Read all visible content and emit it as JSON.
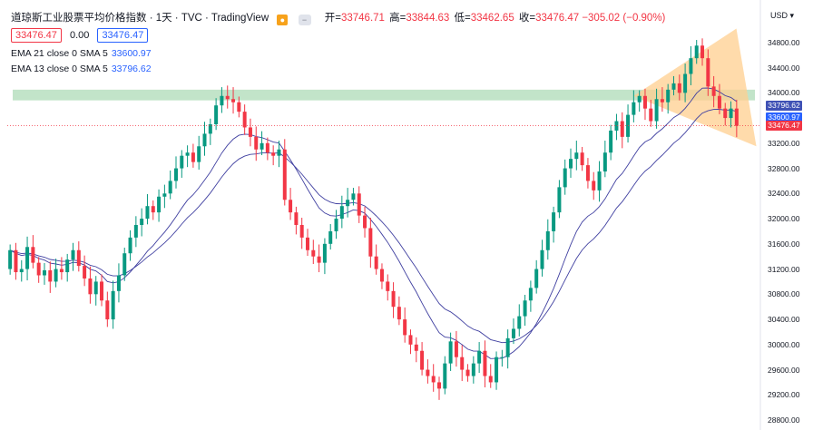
{
  "header": {
    "symbol_title": "道琼斯工业股票平均价格指数 · 1天 · TVC · TradingView",
    "open_label": "开=",
    "open_value": "33746.71",
    "high_label": "高=",
    "high_value": "33844.63",
    "low_label": "低=",
    "low_value": "33462.65",
    "close_label": "收=",
    "close_value": "33476.47",
    "change_value": "−305.02 (−0.90%)",
    "price_box_red": "33476.47",
    "zero_value": "0.00",
    "price_box_blue": "33476.47"
  },
  "indicators": [
    {
      "label": "EMA 21 close 0 SMA 5",
      "value": "33600.97"
    },
    {
      "label": "EMA 13 close 0 SMA 5",
      "value": "33796.62"
    }
  ],
  "price_scale": {
    "currency": "USD",
    "ticks": [
      "34800.00",
      "34400.00",
      "34000.00",
      "33200.00",
      "32800.00",
      "32400.00",
      "32000.00",
      "31600.00",
      "31200.00",
      "30800.00",
      "30400.00",
      "30000.00",
      "29600.00",
      "29200.00",
      "28800.00"
    ],
    "tags": [
      {
        "text": "33796.62",
        "color": "#3f51b5"
      },
      {
        "text": "33600.97",
        "color": "#2962ff"
      },
      {
        "text": "33476.47",
        "color": "#f23645"
      }
    ]
  },
  "colors": {
    "up": "#089981",
    "down": "#f23645",
    "ema_line": "#3f3fa0",
    "zone": "#b7dfc0",
    "triangle": "#ffcf8f"
  },
  "chart_data": {
    "type": "candlestick",
    "ylim": [
      28700,
      35100
    ],
    "series": [
      {
        "name": "EMA 21 close 0 SMA 5"
      },
      {
        "name": "EMA 13 close 0 SMA 5"
      }
    ],
    "close": [
      31500,
      31150,
      31200,
      31550,
      31300,
      31100,
      31180,
      31000,
      31200,
      31150,
      31350,
      31500,
      31250,
      31050,
      30800,
      31000,
      30700,
      30400,
      30850,
      31100,
      31450,
      31700,
      31900,
      32000,
      32200,
      32100,
      32350,
      32400,
      32600,
      32800,
      33000,
      33050,
      32900,
      33150,
      33350,
      33500,
      33800,
      33950,
      33900,
      33850,
      33700,
      33450,
      33300,
      33100,
      33200,
      33050,
      33000,
      33100,
      32300,
      32100,
      31900,
      31700,
      31500,
      31400,
      31300,
      31600,
      31800,
      32000,
      32200,
      32300,
      32400,
      32050,
      31850,
      31400,
      31200,
      31000,
      30850,
      30600,
      30400,
      30150,
      30000,
      29900,
      29600,
      29500,
      29400,
      29300,
      29700,
      30050,
      29800,
      29600,
      29500,
      29700,
      29900,
      29500,
      29400,
      29800,
      29800,
      30100,
      30250,
      30450,
      30700,
      30900,
      31200,
      31500,
      31800,
      32100,
      32500,
      32800,
      32950,
      33050,
      32850,
      32600,
      32450,
      32750,
      33050,
      33400,
      33550,
      33300,
      33650,
      33850,
      33950,
      33750,
      33550,
      33900,
      33850,
      34050,
      34150,
      34000,
      34300,
      34550,
      34750,
      34550,
      34100,
      33950,
      33750,
      33600,
      33750,
      33476
    ],
    "open": [
      31200,
      31500,
      31150,
      31200,
      31550,
      31300,
      31100,
      31180,
      31000,
      31200,
      31150,
      31350,
      31500,
      31250,
      31050,
      30800,
      31000,
      30700,
      30400,
      30850,
      31100,
      31450,
      31700,
      31900,
      32000,
      32200,
      32100,
      32350,
      32400,
      32600,
      32800,
      33000,
      33050,
      32900,
      33150,
      33350,
      33500,
      33800,
      33950,
      33900,
      33850,
      33700,
      33450,
      33300,
      33100,
      33200,
      33050,
      33000,
      33100,
      32300,
      32100,
      31900,
      31700,
      31500,
      31400,
      31300,
      31600,
      31800,
      32000,
      32200,
      32300,
      32400,
      32050,
      31850,
      31400,
      31200,
      31000,
      30850,
      30600,
      30400,
      30150,
      30000,
      29900,
      29600,
      29500,
      29400,
      29300,
      29700,
      30050,
      29800,
      29600,
      29500,
      29700,
      29900,
      29500,
      29400,
      29800,
      29800,
      30100,
      30250,
      30450,
      30700,
      30900,
      31200,
      31500,
      31800,
      32100,
      32500,
      32800,
      32950,
      33050,
      32850,
      32600,
      32450,
      32750,
      33050,
      33400,
      33550,
      33300,
      33650,
      33850,
      33950,
      33750,
      33550,
      33900,
      33850,
      34050,
      34150,
      34000,
      34300,
      34550,
      34750,
      34550,
      34100,
      33950,
      33750,
      33600,
      33750
    ],
    "zone": [
      33880,
      34050
    ],
    "dotted_price": 33476.47
  }
}
